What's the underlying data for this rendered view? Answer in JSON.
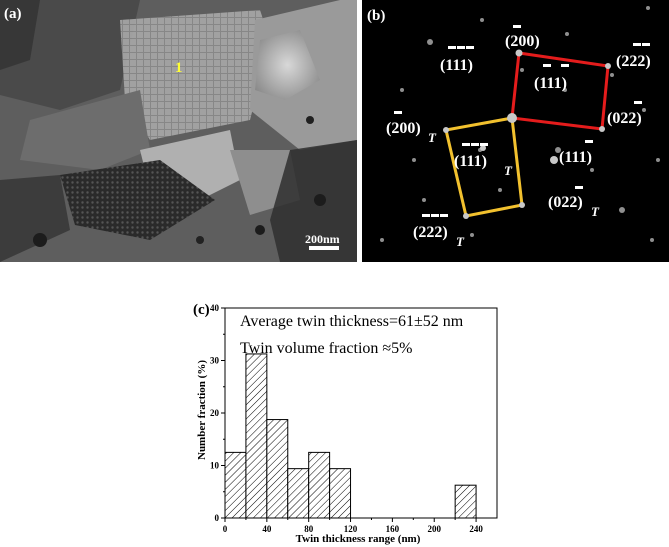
{
  "panel_a": {
    "label": "(a)",
    "grain_label": "1",
    "scale_text": "200nm"
  },
  "panel_b": {
    "label": "(b)",
    "spots": [
      {
        "text": "(200)",
        "sub": "",
        "bar": "first"
      },
      {
        "text": "(111)",
        "sub": "",
        "bar": "all"
      },
      {
        "text": "(111)",
        "sub": "",
        "bar": "last2"
      },
      {
        "text": "(222)",
        "sub": "",
        "bar": "last2"
      },
      {
        "text": "(022)",
        "sub": "",
        "bar": "last"
      },
      {
        "text": "(200)",
        "sub": "T",
        "bar": "first"
      },
      {
        "text": "(111)",
        "sub": "T",
        "bar": "all"
      },
      {
        "text": "(111)",
        "sub": "",
        "bar": "last"
      },
      {
        "text": "(022)",
        "sub": "T",
        "bar": "last"
      },
      {
        "text": "(222)",
        "sub": "T",
        "bar": "all"
      }
    ],
    "matrix_color": "#e41c1c",
    "twin_color": "#f2c12e"
  },
  "panel_c": {
    "label": "(c)",
    "annotation_1": "Average twin thickness=61±52 nm",
    "annotation_2": "Twin volume fraction ≈5%"
  },
  "chart_data": {
    "type": "bar",
    "title": "",
    "xlabel": "Twin thickness range (nm)",
    "ylabel": "Number fraction (%)",
    "bin_width": 20,
    "bins": [
      0,
      20,
      40,
      60,
      80,
      100,
      220
    ],
    "values": [
      12.5,
      31.25,
      18.75,
      9.4,
      12.5,
      9.4,
      6.25
    ],
    "xlim": [
      0,
      260
    ],
    "ylim": [
      0,
      40
    ],
    "xticks": [
      0,
      40,
      80,
      120,
      160,
      200,
      240
    ],
    "yticks": [
      0,
      10,
      20,
      30,
      40
    ],
    "fill": "hatched",
    "grid": false
  }
}
